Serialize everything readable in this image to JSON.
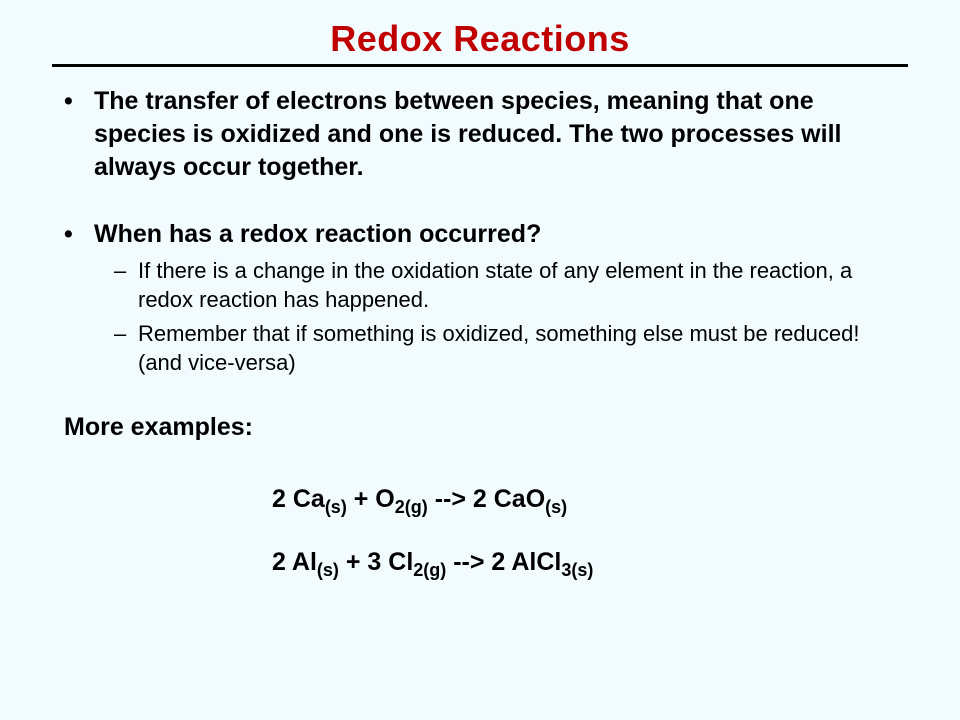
{
  "title": "Redox Reactions",
  "title_color": "#c00000",
  "background_color": "#f2fbfe",
  "text_color": "#000000",
  "rule_color": "#000000",
  "bullets": [
    {
      "text": "The transfer of electrons between species, meaning that one species is oxidized and one is reduced.  The two processes will always occur together."
    },
    {
      "text": "When has a redox reaction occurred?",
      "sub": [
        "If there is a change in the oxidation state of any element in the reaction, a redox reaction has happened.",
        "Remember that if something is oxidized, something else must be reduced! (and vice-versa)"
      ]
    }
  ],
  "more_examples_label": "More examples:",
  "equations": {
    "eq1": {
      "pre": "2 Ca",
      "sub1": "(s)",
      "mid1": " + O",
      "sub2": "2(g)",
      "arrow": " -->  2 CaO",
      "sub3": "(s)"
    },
    "eq2": {
      "pre": "2 Al",
      "sub1": "(s)",
      "mid1": "  + 3 Cl",
      "sub2": "2(g)",
      "arrow": " -->  2 AlCl",
      "sub3": "3(s)"
    }
  },
  "fonts": {
    "title_pt": 36,
    "body_pt": 25,
    "sub_pt": 22
  }
}
